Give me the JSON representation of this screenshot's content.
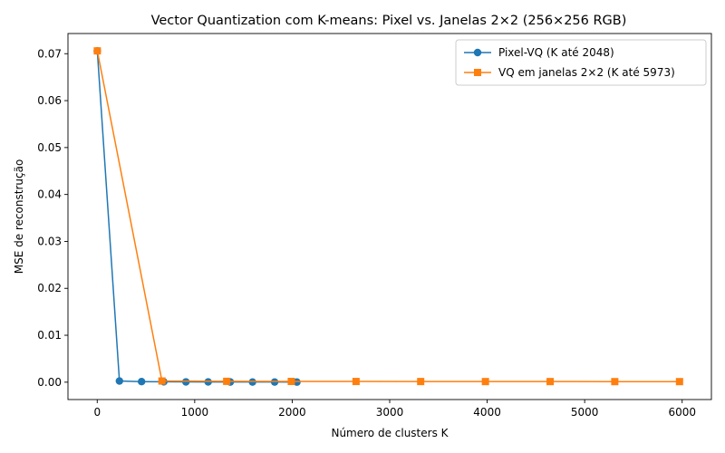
{
  "chart_data": {
    "type": "line",
    "title": "Vector Quantization com K-means: Pixel vs. Janelas 2×2 (256×256 RGB)",
    "xlabel": "Número de clusters K",
    "ylabel": "MSE de reconstrução",
    "xlim": [
      -300,
      6300
    ],
    "ylim": [
      -0.0037,
      0.0743
    ],
    "xticks": [
      0,
      1000,
      2000,
      3000,
      4000,
      5000,
      6000
    ],
    "xtick_labels": [
      "0",
      "1000",
      "2000",
      "3000",
      "4000",
      "5000",
      "6000"
    ],
    "yticks": [
      0.0,
      0.01,
      0.02,
      0.03,
      0.04,
      0.05,
      0.06,
      0.07
    ],
    "ytick_labels": [
      "0.00",
      "0.01",
      "0.02",
      "0.03",
      "0.04",
      "0.05",
      "0.06",
      "0.07"
    ],
    "grid": false,
    "legend_position": "top-right",
    "series": [
      {
        "name": "Pixel-VQ (K até 2048)",
        "color": "#1f77b4",
        "marker": "circle",
        "x": [
          1,
          228,
          455,
          683,
          910,
          1138,
          1365,
          1593,
          1820,
          2048
        ],
        "y": [
          0.0706,
          0.00025,
          0.00012,
          8e-05,
          6e-05,
          5e-05,
          4e-05,
          3e-05,
          3e-05,
          2e-05
        ]
      },
      {
        "name": "VQ em janelas 2×2 (K até 5973)",
        "color": "#ff7f0e",
        "marker": "square",
        "x": [
          1,
          664,
          1328,
          1991,
          2655,
          3318,
          3982,
          4646,
          5309,
          5973
        ],
        "y": [
          0.0706,
          0.00025,
          0.00018,
          0.00016,
          0.00015,
          0.00014,
          0.00013,
          0.00013,
          0.00012,
          0.00012
        ]
      }
    ]
  }
}
